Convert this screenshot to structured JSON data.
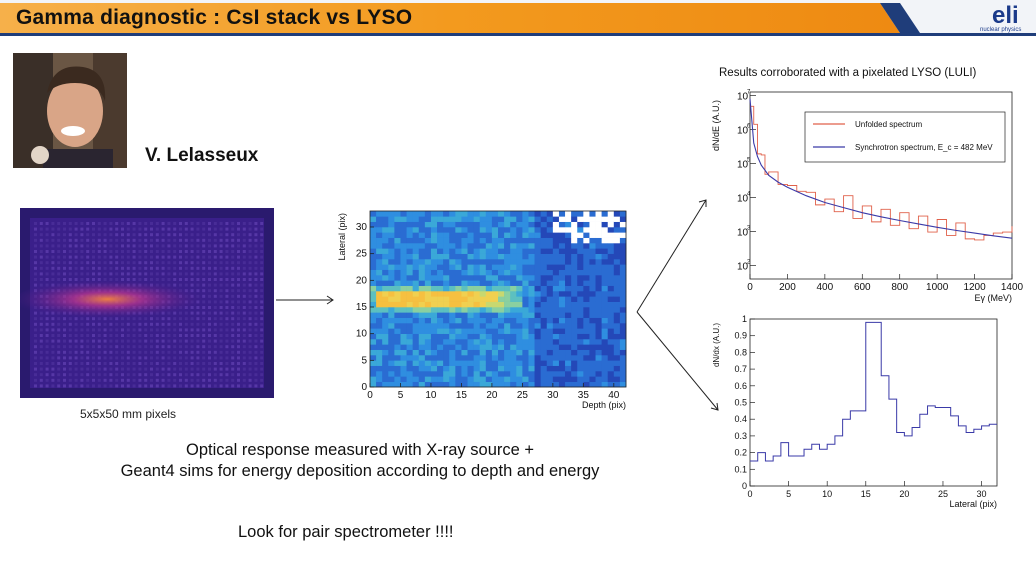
{
  "slide": {
    "title": "Gamma diagnostic : CsI stack vs LYSO",
    "logo_text": "eli",
    "logo_sub": "nuclear physics",
    "author": "V. Lelasseux",
    "pixels_caption": "5x5x50 mm pixels",
    "main_text_line1": "Optical response measured with X-ray source +",
    "main_text_line2": "Geant4 sims for energy deposition according to depth and energy",
    "pair_text": "Look for pair spectrometer !!!!",
    "lyso_caption": "Results corroborated with a pixelated LYSO (LULI)",
    "colors": {
      "banner_orange": "#f39a1e",
      "banner_navy": "#1f3d7a",
      "heat_bg": "#1e1a6e"
    }
  },
  "chart_data": [
    {
      "type": "heatmap",
      "xlabel": "Depth (pix)",
      "ylabel": "Lateral (pix)",
      "xlim": [
        0,
        42
      ],
      "ylim": [
        0,
        33
      ],
      "x_ticks": [
        "0",
        "5",
        "10",
        "15",
        "20",
        "25",
        "30",
        "35",
        "40"
      ],
      "y_ticks": [
        "0",
        "5",
        "10",
        "15",
        "20",
        "25",
        "30"
      ],
      "band_center_lateral": 16.5,
      "band_peak_depth_range": [
        2,
        20
      ]
    },
    {
      "type": "line",
      "xlabel": "Eγ (MeV)",
      "ylabel": "dN/dE (A.U.)",
      "xlim": [
        0,
        1400
      ],
      "ylog": true,
      "y_ticks": [
        "10^2",
        "10^3",
        "10^4",
        "10^5",
        "10^6",
        "10^7"
      ],
      "x_ticks": [
        "0",
        "200",
        "400",
        "600",
        "800",
        "1000",
        "1200",
        "1400"
      ],
      "series": [
        {
          "name": "Unfolded spectrum",
          "color": "#e0604a",
          "x": [
            0,
            20,
            40,
            60,
            80,
            100,
            150,
            200,
            250,
            300,
            350,
            400,
            450,
            500,
            550,
            600,
            650,
            700,
            750,
            800,
            850,
            900,
            950,
            1000,
            1050,
            1100,
            1150,
            1200,
            1250,
            1300,
            1350,
            1400
          ],
          "y_log10": [
            6.8,
            6.0,
            5.4,
            5.1,
            4.8,
            4.6,
            4.5,
            4.2,
            4.3,
            4.0,
            3.9,
            3.8,
            3.7,
            3.9,
            3.5,
            3.6,
            3.4,
            3.5,
            3.3,
            3.4,
            3.2,
            3.3,
            3.1,
            3.2,
            3.0,
            3.1,
            2.9,
            2.6,
            3.0,
            2.8,
            3.1,
            3.0
          ]
        },
        {
          "name": "Synchrotron spectrum, E_c = 482 MeV",
          "color": "#3a3aa8",
          "x": [
            0,
            20,
            40,
            60,
            80,
            100,
            150,
            200,
            300,
            400,
            500,
            600,
            700,
            800,
            900,
            1000,
            1100,
            1200,
            1300,
            1400
          ],
          "y_log10": [
            6.9,
            5.6,
            5.2,
            4.95,
            4.8,
            4.65,
            4.45,
            4.3,
            4.05,
            3.85,
            3.7,
            3.55,
            3.43,
            3.32,
            3.22,
            3.12,
            3.03,
            2.95,
            2.87,
            2.8
          ]
        }
      ]
    },
    {
      "type": "line",
      "xlabel": "Lateral (pix)",
      "ylabel": "dN/dx (A.U.)",
      "xlim": [
        0,
        32
      ],
      "ylim": [
        0,
        1
      ],
      "x_ticks": [
        "0",
        "5",
        "10",
        "15",
        "20",
        "25",
        "30"
      ],
      "y_ticks": [
        "0",
        "0.1",
        "0.2",
        "0.3",
        "0.4",
        "0.5",
        "0.6",
        "0.7",
        "0.8",
        "0.9",
        "1"
      ],
      "series": [
        {
          "color": "#3a3aa8",
          "x": [
            0,
            1,
            2,
            3,
            4,
            5,
            6,
            7,
            8,
            9,
            10,
            11,
            12,
            13,
            14,
            15,
            16,
            17,
            18,
            19,
            20,
            21,
            22,
            23,
            24,
            25,
            26,
            27,
            28,
            29,
            30,
            31,
            32
          ],
          "y": [
            0.15,
            0.2,
            0.15,
            0.18,
            0.26,
            0.18,
            0.18,
            0.22,
            0.25,
            0.22,
            0.25,
            0.3,
            0.4,
            0.45,
            0.45,
            0.98,
            0.98,
            0.66,
            0.52,
            0.32,
            0.3,
            0.35,
            0.43,
            0.48,
            0.47,
            0.47,
            0.42,
            0.36,
            0.32,
            0.34,
            0.36,
            0.37,
            0.37
          ]
        }
      ]
    }
  ]
}
